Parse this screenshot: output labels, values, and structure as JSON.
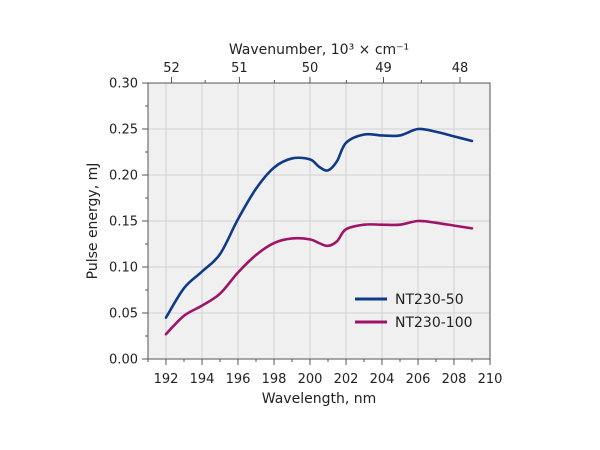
{
  "chart_data": {
    "type": "line",
    "title": "",
    "xlabel": "Wavelength, nm",
    "ylabel": "Pulse energy, mJ",
    "top_xlabel": "Wavenumber, 10³ × cm⁻¹",
    "xlim": [
      191,
      210
    ],
    "ylim": [
      0,
      0.3
    ],
    "grid": true,
    "legend_position": "bottom-right",
    "x_ticks": [
      "192",
      "194",
      "196",
      "198",
      "200",
      "202",
      "204",
      "206",
      "208",
      "210"
    ],
    "y_ticks": [
      "0.00",
      "0.05",
      "0.10",
      "0.15",
      "0.20",
      "0.25",
      "0.30"
    ],
    "top_ticks": [
      "52",
      "51",
      "50",
      "49",
      "48"
    ],
    "series": [
      {
        "name": "NT230-50",
        "color": "#0f3a87",
        "x": [
          192,
          193,
          194,
          195,
          196,
          197,
          198,
          199,
          200,
          200.5,
          201,
          201.5,
          202,
          203,
          204,
          205,
          206,
          207,
          208,
          209
        ],
        "values": [
          0.045,
          0.077,
          0.095,
          0.114,
          0.152,
          0.185,
          0.208,
          0.218,
          0.217,
          0.209,
          0.205,
          0.215,
          0.235,
          0.244,
          0.243,
          0.243,
          0.25,
          0.247,
          0.242,
          0.237
        ]
      },
      {
        "name": "NT230-100",
        "color": "#9e1467",
        "x": [
          192,
          193,
          194,
          195,
          196,
          197,
          198,
          199,
          200,
          200.5,
          201,
          201.5,
          202,
          203,
          204,
          205,
          206,
          207,
          208,
          209
        ],
        "values": [
          0.027,
          0.047,
          0.058,
          0.071,
          0.094,
          0.113,
          0.126,
          0.131,
          0.13,
          0.126,
          0.123,
          0.128,
          0.141,
          0.146,
          0.146,
          0.146,
          0.15,
          0.148,
          0.145,
          0.142
        ]
      }
    ]
  }
}
